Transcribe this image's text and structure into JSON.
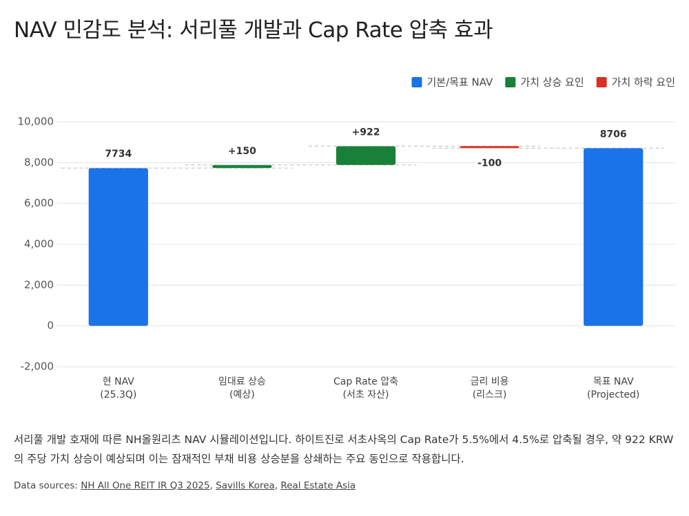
{
  "title": "NAV 민감도 분석: 서리풀 개발과 Cap Rate 압축 효과",
  "chart_data": {
    "type": "waterfall",
    "categories": [
      [
        "현 NAV",
        "(25.3Q)"
      ],
      [
        "임대료 상승",
        "(예상)"
      ],
      [
        "Cap Rate 압축",
        "(서초 자산)"
      ],
      [
        "금리 비용",
        "(리스크)"
      ],
      [
        "목표 NAV",
        "(Projected)"
      ]
    ],
    "values": [
      7734,
      150,
      922,
      -100,
      8706
    ],
    "value_labels": [
      "7734",
      "+150",
      "+922",
      "-100",
      "8706"
    ],
    "kinds": [
      "total",
      "increase",
      "increase",
      "decrease",
      "total"
    ],
    "legend": [
      {
        "kind": "total",
        "name": "기본/목표 NAV",
        "color": "#1a73e8"
      },
      {
        "kind": "increase",
        "name": "가치 상승 요인",
        "color": "#188038"
      },
      {
        "kind": "decrease",
        "name": "가치 하락 요인",
        "color": "#d93025"
      }
    ],
    "ylim": [
      -2000,
      10000
    ],
    "yticks": [
      {
        "value": -2000,
        "label": "-2,000"
      },
      0,
      {
        "value": 2000,
        "label": "2,000"
      },
      {
        "value": 4000,
        "label": "4,000"
      },
      {
        "value": 6000,
        "label": "6,000"
      },
      {
        "value": 8000,
        "label": "8,000"
      },
      {
        "value": 10000,
        "label": "10,000"
      }
    ],
    "grid": true
  },
  "description": "서리풀 개발 호재에 따른 NH올원리츠 NAV 시뮬레이션입니다. 하이트진로 서초사옥의 Cap Rate가 5.5%에서 4.5%로 압축될 경우, 약 922 KRW의 주당 가치 상승이 예상되며 이는 잠재적인 부채 비용 상승분을 상쇄하는 주요 동인으로 작용합니다.",
  "sources": {
    "label": "Data sources:",
    "links": [
      "NH All One REIT IR Q3 2025",
      "Savills Korea",
      "Real Estate Asia"
    ]
  }
}
